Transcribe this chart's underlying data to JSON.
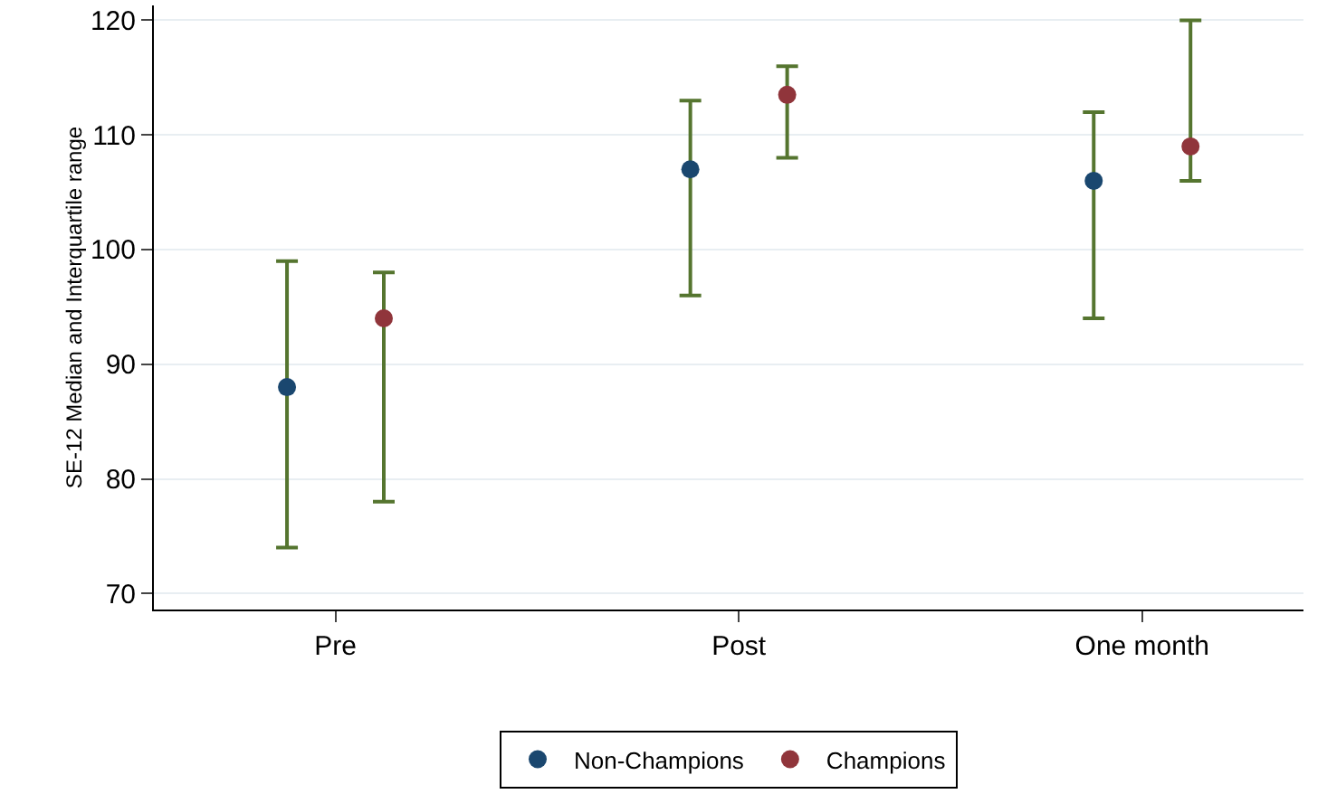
{
  "chart_data": {
    "type": "scatter",
    "ylabel": "SE-12 Median and Interquartile range",
    "categories": [
      "Pre",
      "Post",
      "One month"
    ],
    "ylim": [
      68.6,
      121.3
    ],
    "yticks": [
      70,
      80,
      90,
      100,
      110,
      120
    ],
    "series": [
      {
        "name": "Non-Champions",
        "color": "#1a476f",
        "values": [
          88,
          107,
          106
        ],
        "errors": [
          [
            74,
            99
          ],
          [
            96,
            113
          ],
          [
            94,
            112
          ]
        ]
      },
      {
        "name": "Champions",
        "color": "#90353b",
        "values": [
          94,
          113.5,
          109
        ],
        "errors": [
          [
            78,
            98
          ],
          [
            108,
            116
          ],
          [
            106,
            120
          ]
        ]
      }
    ],
    "marker": "circle",
    "grid": "y",
    "legend": "bottom"
  }
}
